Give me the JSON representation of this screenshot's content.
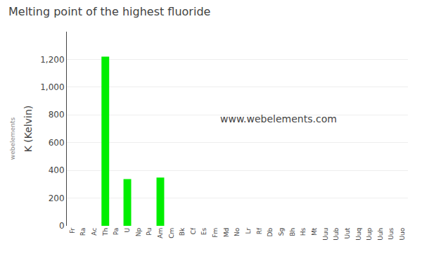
{
  "chart_data": {
    "type": "bar",
    "title": "Melting point of the highest fluoride",
    "ylabel": "K (Kelvin)",
    "annotations": [
      "www.webelements.com",
      "webelements"
    ],
    "categories": [
      "Fr",
      "Ra",
      "Ac",
      "Th",
      "Pa",
      "U",
      "Np",
      "Pu",
      "Am",
      "Cm",
      "Bk",
      "Cf",
      "Es",
      "Fm",
      "Md",
      "No",
      "Lr",
      "Rf",
      "Db",
      "Sg",
      "Bh",
      "Hs",
      "Mt",
      "Uuu",
      "Uub",
      "Uut",
      "Uuq",
      "Uup",
      "Uuh",
      "Uus",
      "Uuo"
    ],
    "values": [
      0,
      0,
      0,
      1220,
      0,
      337,
      0,
      0,
      348,
      0,
      0,
      0,
      0,
      0,
      0,
      0,
      0,
      0,
      0,
      0,
      0,
      0,
      0,
      0,
      0,
      0,
      0,
      0,
      0,
      0,
      0
    ],
    "color": "#00ee00",
    "ylim": [
      0,
      1400
    ],
    "yticks": [
      0,
      200,
      400,
      600,
      800,
      {
        "value": 1000,
        "label": "1,000"
      },
      {
        "value": 1200,
        "label": "1,200"
      }
    ],
    "grid": true
  }
}
